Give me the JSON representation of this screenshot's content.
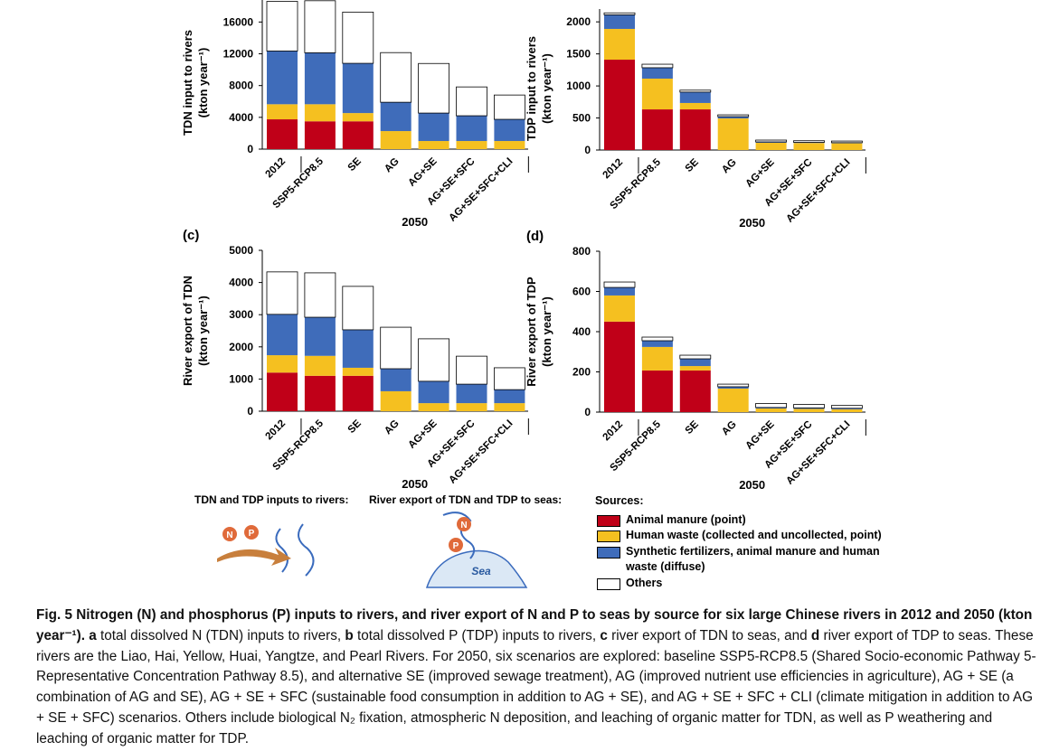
{
  "chart_data": [
    {
      "type": "bar",
      "stacked": true,
      "ylabel": [
        "TDN input to rivers",
        "(kton year⁻¹)"
      ],
      "categories": [
        "2012",
        "SSP5-RCP8.5",
        "SE",
        "AG",
        "AG+SE",
        "AG+SE+SFC",
        "AG+SE+SFC+CLI"
      ],
      "group_label": "2050",
      "ylim": [
        0,
        19000
      ],
      "yticks": [
        0,
        4000,
        8000,
        12000,
        16000
      ],
      "series": [
        {
          "values": [
            3750,
            3500,
            3500,
            0,
            0,
            0,
            0
          ]
        },
        {
          "values": [
            1900,
            2150,
            1040,
            2270,
            1020,
            1020,
            1020
          ]
        },
        {
          "values": [
            6700,
            6480,
            6260,
            3630,
            3520,
            3180,
            2730
          ]
        },
        {
          "values": [
            6250,
            6550,
            6450,
            6250,
            6240,
            3630,
            3060
          ]
        }
      ]
    },
    {
      "type": "bar",
      "stacked": true,
      "ylabel": [
        "TDP input to rivers",
        "(kton year⁻¹)"
      ],
      "categories": [
        "2012",
        "SSP5-RCP8.5",
        "SE",
        "AG",
        "AG+SE",
        "AG+SE+SFC",
        "AG+SE+SFC+CLI"
      ],
      "group_label": "2050",
      "ylim": [
        0,
        2200
      ],
      "yticks": [
        0,
        500,
        1000,
        1500,
        2000
      ],
      "series": [
        {
          "values": [
            1410,
            634,
            634,
            0,
            0,
            0,
            0
          ]
        },
        {
          "values": [
            480,
            480,
            100,
            493,
            113,
            110,
            105
          ]
        },
        {
          "values": [
            220,
            170,
            170,
            28,
            14,
            10,
            10
          ]
        },
        {
          "values": [
            30,
            55,
            30,
            28,
            28,
            25,
            25
          ]
        }
      ]
    },
    {
      "type": "bar",
      "stacked": true,
      "panel": "(c)",
      "ylabel": [
        "River export of TDN",
        "(kton year⁻¹)"
      ],
      "categories": [
        "2012",
        "SSP5-RCP8.5",
        "SE",
        "AG",
        "AG+SE",
        "AG+SE+SFC",
        "AG+SE+SFC+CLI"
      ],
      "group_label": "2050",
      "ylim": [
        0,
        5000
      ],
      "yticks": [
        0,
        1000,
        2000,
        3000,
        4000,
        5000
      ],
      "series": [
        {
          "values": [
            1200,
            1100,
            1100,
            0,
            0,
            0,
            0
          ]
        },
        {
          "values": [
            540,
            620,
            250,
            620,
            250,
            250,
            250
          ]
        },
        {
          "values": [
            1270,
            1200,
            1180,
            700,
            680,
            590,
            420
          ]
        },
        {
          "values": [
            1320,
            1380,
            1350,
            1290,
            1320,
            870,
            680
          ]
        }
      ]
    },
    {
      "type": "bar",
      "stacked": true,
      "panel": "(d)",
      "ylabel": [
        "River export of TDP",
        "(kton year⁻¹)"
      ],
      "categories": [
        "2012",
        "SSP5-RCP8.5",
        "SE",
        "AG",
        "AG+SE",
        "AG+SE+SFC",
        "AG+SE+SFC+CLI"
      ],
      "group_label": "2050",
      "ylim": [
        0,
        800
      ],
      "yticks": [
        0,
        200,
        400,
        600,
        800
      ],
      "series": [
        {
          "values": [
            450,
            207,
            207,
            0,
            0,
            0,
            0
          ]
        },
        {
          "values": [
            130,
            117,
            22,
            117,
            18,
            16,
            14
          ]
        },
        {
          "values": [
            40,
            31,
            36,
            9,
            5,
            5,
            5
          ]
        },
        {
          "values": [
            27,
            18,
            18,
            13,
            20,
            17,
            14
          ]
        }
      ]
    }
  ],
  "legend": {
    "title": "Sources:",
    "items": [
      {
        "name": "Animal manure (point)",
        "color": "#c00018"
      },
      {
        "name": "Human waste (collected and uncollected, point)",
        "color": "#f5c020"
      },
      {
        "name": "Synthetic fertilizers, animal manure and human waste (diffuse)",
        "color": "#3f6cba"
      },
      {
        "name": "Others",
        "color": "#ffffff"
      }
    ]
  },
  "illustration": {
    "inputs_label": "TDN and TDP inputs to rivers:",
    "export_label": "River export of TDN and TDP to seas:",
    "n": "N",
    "p": "P",
    "sea": "Sea"
  },
  "caption": [
    {
      "text": "Fig. 5 Nitrogen (N) and phosphorus (P) inputs to rivers, and river export of N and P to seas by source for six large Chinese rivers in 2012 and 2050 (kton year⁻¹).",
      "bold": true
    },
    {
      "text": " ",
      "bold": false
    },
    {
      "text": "a",
      "bold": true
    },
    {
      "text": " total dissolved N (TDN) inputs to rivers, ",
      "bold": false
    },
    {
      "text": "b",
      "bold": true
    },
    {
      "text": " total dissolved P (TDP) inputs to rivers, ",
      "bold": false
    },
    {
      "text": "c",
      "bold": true
    },
    {
      "text": " river export of TDN to seas, and ",
      "bold": false
    },
    {
      "text": "d",
      "bold": true
    },
    {
      "text": " river export of TDP to seas. These rivers are the Liao, Hai, Yellow, Huai, Yangtze, and Pearl Rivers. For 2050, six scenarios are explored: baseline SSP5-RCP8.5 (Shared Socio-economic Pathway 5-Representative Concentration Pathway 8.5), and alternative SE (improved sewage treatment), AG (improved nutrient use efficiencies in agriculture), AG + SE (a combination of AG and SE), AG + SE + SFC (sustainable food consumption in addition to AG + SE), and AG + SE + SFC + CLI (climate mitigation in addition to AG + SE + SFC) scenarios. Others include biological N₂ fixation, atmospheric N deposition, and leaching of organic matter for TDN, as well as P weathering and leaching of organic matter for TDP.",
      "bold": false
    }
  ]
}
